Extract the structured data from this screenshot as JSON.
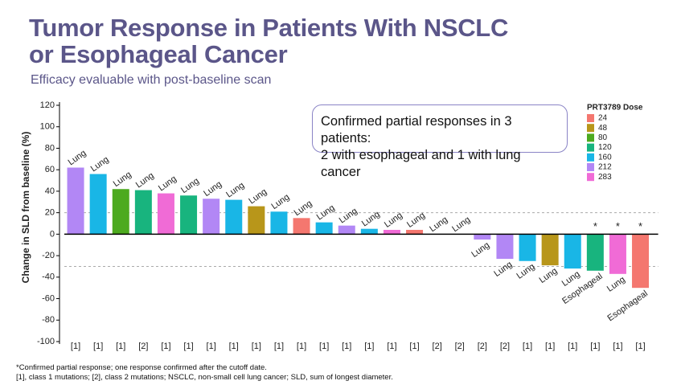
{
  "chart_data": {
    "type": "bar",
    "title": "Tumor Response in Patients With NSCLC or Esophageal Cancer",
    "subtitle": "Efficacy evaluable with post-baseline scan",
    "ylabel": "Change in SLD from baseline (%)",
    "annotation_lines": [
      "Confirmed partial responses in 3 patients:",
      "2 with esophageal and 1 with lung cancer"
    ],
    "footnotes": [
      "*Confirmed partial response; one response confirmed after the cutoff date.",
      "[1], class 1 mutations; [2], class 2 mutations; NSCLC, non-small cell lung cancer; SLD, sum of longest diameter."
    ],
    "ylim": [
      -100,
      120
    ],
    "yticks": [
      -100,
      -80,
      -60,
      -40,
      -20,
      0,
      20,
      40,
      60,
      80,
      100,
      120
    ],
    "reference_lines": [
      20,
      -30
    ],
    "values": [
      62,
      56,
      42,
      41,
      38,
      36,
      33,
      32,
      26,
      21,
      15,
      11,
      8,
      5,
      4,
      4,
      0,
      0,
      -5,
      -23,
      -25,
      -29,
      -32,
      -34,
      -37,
      -50
    ],
    "colors": [
      "#b287f5",
      "#19b6e6",
      "#4daa1f",
      "#18b47e",
      "#f06bd6",
      "#18b47e",
      "#b287f5",
      "#19b6e6",
      "#b8961a",
      "#19b6e6",
      "#f4776f",
      "#19b6e6",
      "#b287f5",
      "#19b6e6",
      "#f06bd6",
      "#f4776f",
      "#19b6e6",
      "#19b6e6",
      "#b287f5",
      "#b287f5",
      "#19b6e6",
      "#b8961a",
      "#19b6e6",
      "#18b47e",
      "#f06bd6",
      "#f4776f"
    ],
    "tumor_labels": [
      "Lung",
      "Lung",
      "Lung",
      "Lung",
      "Lung",
      "Lung",
      "Lung",
      "Lung",
      "Lung",
      "Lung",
      "Lung",
      "Lung",
      "Lung",
      "Lung",
      "Lung",
      "Lung",
      "Lung",
      "Lung",
      "Lung",
      "Lung",
      "Lung",
      "Lung",
      "Lung",
      "Esophageal",
      "Lung",
      "Esophageal"
    ],
    "class_labels": [
      "[1]",
      "[1]",
      "[1]",
      "[2]",
      "[1]",
      "[1]",
      "[1]",
      "[1]",
      "[1]",
      "[1]",
      "[1]",
      "[1]",
      "[1]",
      "[1]",
      "[1]",
      "[1]",
      "[2]",
      "[2]",
      "[2]",
      "[2]",
      "[1]",
      "[1]",
      "[1]",
      "[1]",
      "[1]",
      "[1]"
    ],
    "markers": [
      null,
      null,
      null,
      null,
      null,
      null,
      null,
      null,
      null,
      null,
      null,
      null,
      null,
      null,
      null,
      null,
      null,
      null,
      null,
      null,
      null,
      null,
      null,
      "*",
      "*",
      "*"
    ],
    "legend": {
      "title": "PRT3789 Dose",
      "items": [
        {
          "label": "24",
          "color": "#f4776f"
        },
        {
          "label": "48",
          "color": "#b8961a"
        },
        {
          "label": "80",
          "color": "#4daa1f"
        },
        {
          "label": "120",
          "color": "#18b47e"
        },
        {
          "label": "160",
          "color": "#19b6e6"
        },
        {
          "label": "212",
          "color": "#b287f5"
        },
        {
          "label": "283",
          "color": "#f06bd6"
        }
      ]
    }
  }
}
